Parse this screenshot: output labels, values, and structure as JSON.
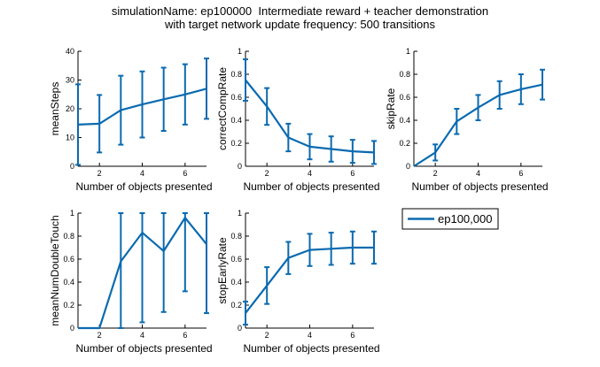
{
  "figure": {
    "title_line1": "simulationName: ep100000  Intermediate reward + teacher demonstration",
    "title_line2": "with target network update frequency: 500 transitions",
    "series_color": "#0a6ab0",
    "legend_label": "ep100,000"
  },
  "chart_data": [
    {
      "type": "line",
      "title": "",
      "xlabel": "Number of objects presented",
      "ylabel": "meanSteps",
      "xlim": [
        1,
        7
      ],
      "ylim": [
        0,
        40
      ],
      "xticks": [
        "2",
        "4",
        "6"
      ],
      "xtick_values": [
        2,
        4,
        6
      ],
      "yticks": [
        "0",
        "10",
        "20",
        "30",
        "40"
      ],
      "ytick_values": [
        0,
        10,
        20,
        30,
        40
      ],
      "grid": false,
      "x": [
        1,
        2,
        3,
        4,
        5,
        6,
        7
      ],
      "series": [
        {
          "name": "ep100,000",
          "values": [
            14.5,
            14.8,
            19.5,
            21.5,
            23.3,
            25.0,
            27.0
          ],
          "error": [
            14.0,
            10.0,
            12.0,
            11.5,
            11.0,
            10.5,
            10.5
          ]
        }
      ]
    },
    {
      "type": "line",
      "title": "",
      "xlabel": "Number of objects presented",
      "ylabel": "correctCompRate",
      "xlim": [
        1,
        7
      ],
      "ylim": [
        0,
        1
      ],
      "xticks": [
        "2",
        "4",
        "6"
      ],
      "xtick_values": [
        2,
        4,
        6
      ],
      "yticks": [
        "0",
        "0.2",
        "0.4",
        "0.6",
        "0.8",
        "1"
      ],
      "ytick_values": [
        0,
        0.2,
        0.4,
        0.6,
        0.8,
        1
      ],
      "grid": false,
      "x": [
        1,
        2,
        3,
        4,
        5,
        6,
        7
      ],
      "series": [
        {
          "name": "ep100,000",
          "values": [
            0.75,
            0.52,
            0.25,
            0.17,
            0.15,
            0.13,
            0.12
          ],
          "error": [
            0.18,
            0.16,
            0.12,
            0.11,
            0.11,
            0.1,
            0.1
          ]
        }
      ]
    },
    {
      "type": "line",
      "title": "",
      "xlabel": "Number of objects presented",
      "ylabel": "skipRate",
      "xlim": [
        1,
        7
      ],
      "ylim": [
        0,
        1
      ],
      "xticks": [
        "2",
        "4",
        "6"
      ],
      "xtick_values": [
        2,
        4,
        6
      ],
      "yticks": [
        "0",
        "0.2",
        "0.4",
        "0.6",
        "0.8",
        "1"
      ],
      "ytick_values": [
        0,
        0.2,
        0.4,
        0.6,
        0.8,
        1
      ],
      "grid": false,
      "x": [
        1,
        2,
        3,
        4,
        5,
        6,
        7
      ],
      "series": [
        {
          "name": "ep100,000",
          "values": [
            0.0,
            0.12,
            0.39,
            0.51,
            0.62,
            0.67,
            0.71
          ],
          "error": [
            0.0,
            0.07,
            0.11,
            0.11,
            0.12,
            0.13,
            0.13
          ]
        }
      ]
    },
    {
      "type": "line",
      "title": "",
      "xlabel": "Number of objects presented",
      "ylabel": "meanNumDoubleTouch",
      "xlim": [
        1,
        7
      ],
      "ylim": [
        0,
        1
      ],
      "xticks": [
        "2",
        "4",
        "6"
      ],
      "xtick_values": [
        2,
        4,
        6
      ],
      "yticks": [
        "0",
        "0.2",
        "0.4",
        "0.6",
        "0.8",
        "1"
      ],
      "ytick_values": [
        0,
        0.2,
        0.4,
        0.6,
        0.8,
        1
      ],
      "grid": false,
      "x": [
        1,
        2,
        3,
        4,
        5,
        6,
        7
      ],
      "series": [
        {
          "name": "ep100,000",
          "values": [
            0.0,
            0.0,
            0.58,
            0.83,
            0.67,
            0.96,
            0.73
          ],
          "error": [
            0.0,
            0.0,
            0.6,
            0.78,
            0.53,
            0.64,
            0.6
          ]
        }
      ]
    },
    {
      "type": "line",
      "title": "",
      "xlabel": "Number of objects presented",
      "ylabel": "stopEarlyRate",
      "xlim": [
        1,
        7
      ],
      "ylim": [
        0,
        1
      ],
      "xticks": [
        "2",
        "4",
        "6"
      ],
      "xtick_values": [
        2,
        4,
        6
      ],
      "yticks": [
        "0",
        "0.2",
        "0.4",
        "0.6",
        "0.8",
        "1"
      ],
      "ytick_values": [
        0,
        0.2,
        0.4,
        0.6,
        0.8,
        1
      ],
      "grid": false,
      "x": [
        1,
        2,
        3,
        4,
        5,
        6,
        7
      ],
      "series": [
        {
          "name": "ep100,000",
          "values": [
            0.13,
            0.37,
            0.61,
            0.68,
            0.69,
            0.7,
            0.7
          ],
          "error": [
            0.1,
            0.16,
            0.14,
            0.14,
            0.14,
            0.14,
            0.14
          ]
        }
      ]
    }
  ]
}
